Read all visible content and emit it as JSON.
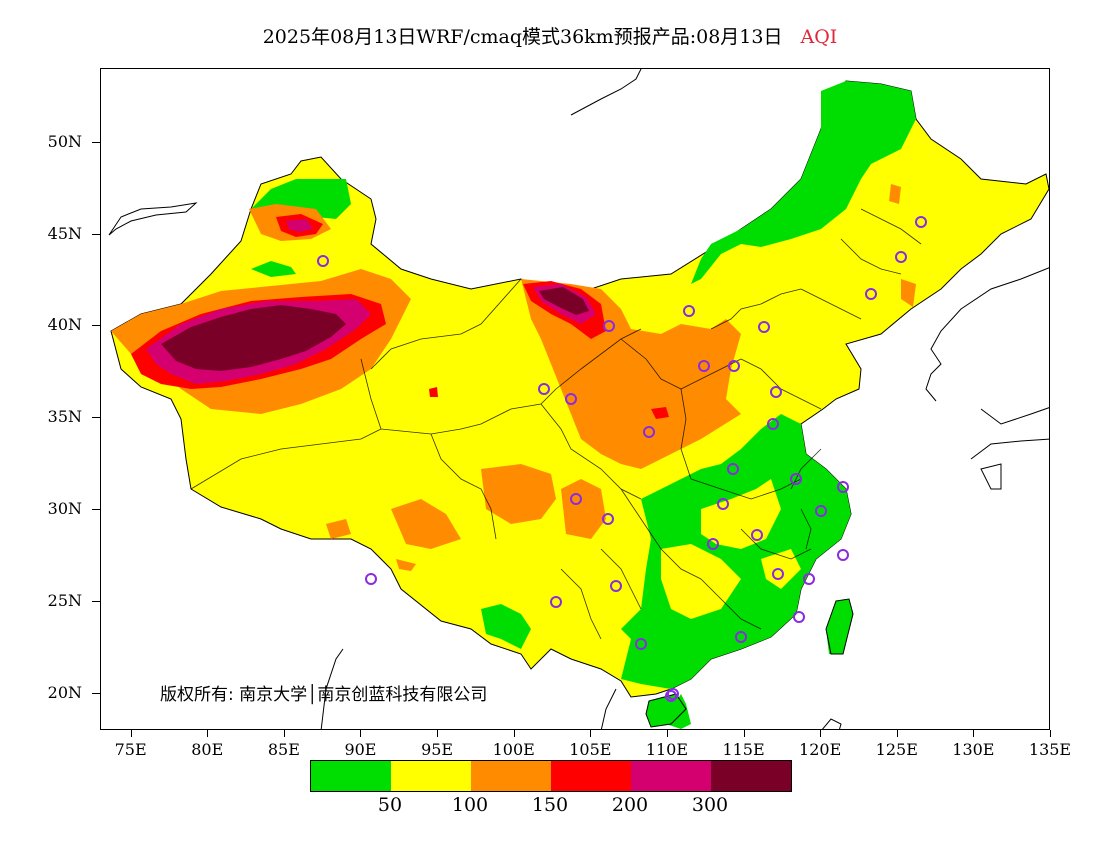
{
  "title": {
    "main": "2025年08月13日WRF/cmaq模式36km预报产品:08月13日",
    "variable": "AQI"
  },
  "map": {
    "lat_ticks": [
      "50N",
      "45N",
      "40N",
      "35N",
      "30N",
      "25N",
      "20N"
    ],
    "lon_ticks": [
      "75E",
      "80E",
      "85E",
      "90E",
      "95E",
      "100E",
      "105E",
      "110E",
      "115E",
      "120E",
      "125E",
      "130E",
      "135E"
    ],
    "lat_range": [
      18,
      54
    ],
    "lon_range": [
      73,
      135
    ],
    "colors": {
      "good": "#00dd00",
      "moderate": "#ffff00",
      "sensitive": "#ff8c00",
      "unhealthy": "#ff0000",
      "very_unhealthy": "#d4006f",
      "hazardous": "#7b0027",
      "station_marker": "#8a2be2",
      "coastline": "#000000"
    }
  },
  "copyright": "版权所有: 南京大学│南京创蓝科技有限公司",
  "legend": {
    "labels": [
      "50",
      "100",
      "150",
      "200",
      "300"
    ],
    "colors": [
      "#00dd00",
      "#ffff00",
      "#ff8c00",
      "#ff0000",
      "#d4006f",
      "#7b0027"
    ]
  }
}
